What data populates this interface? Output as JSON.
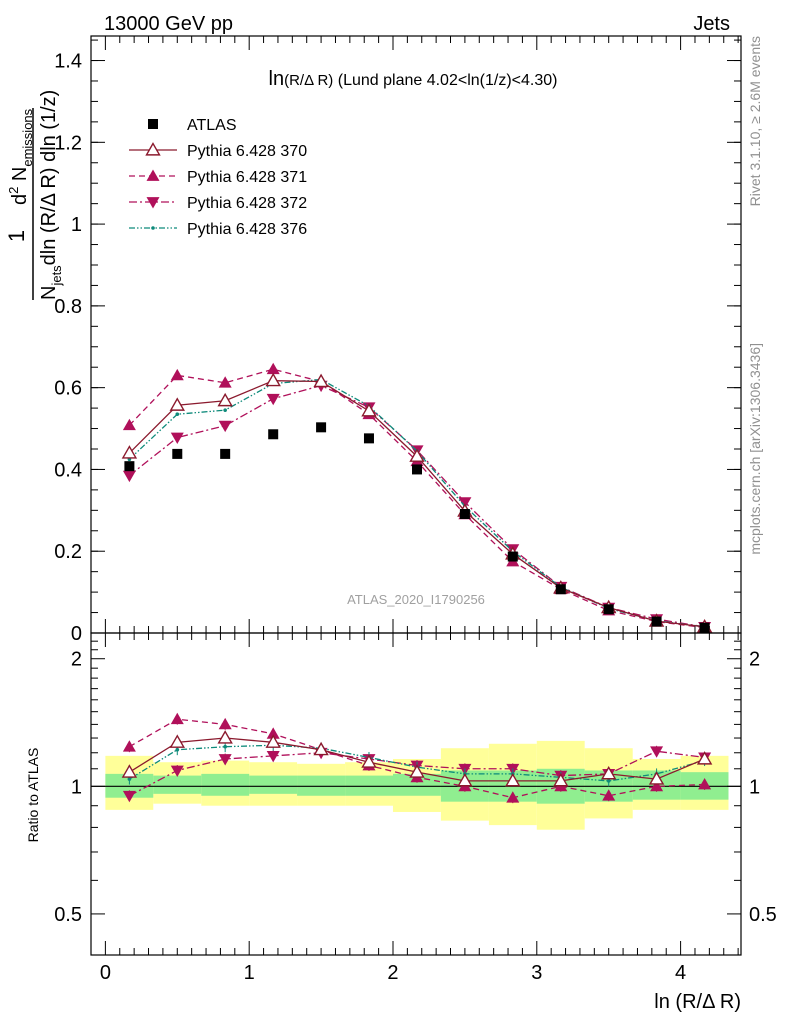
{
  "header": {
    "left": "13000 GeV pp",
    "right": "Jets"
  },
  "side_labels": {
    "rivet": "Rivet 3.1.10, ≥ 2.6M events",
    "mcplots": "mcplots.cern.ch [arXiv:1306.3436]"
  },
  "watermark": "ATLAS_2020_I1790256",
  "chart_data": [
    {
      "type": "scatter",
      "title": "ln(R/Δ R) (Lund plane 4.02<ln(1/z)<4.30)",
      "title_parts": {
        "a": "ln",
        "b": "(R/Δ R)",
        "c": " (Lund plane 4.02<ln(1/z)<4.30)"
      },
      "ylabel": {
        "one": "1",
        "n": "N",
        "n_sub": "jets",
        "dln": "dln (R/Δ R) dln (1/z)",
        "d2": "d",
        "d2_sup": "2",
        "nem": " N",
        "nem_sub": "emissions"
      },
      "xlim": [
        -0.1,
        4.42
      ],
      "ylim": [
        0,
        1.46
      ],
      "yticks": [
        0,
        0.2,
        0.4,
        0.6,
        0.8,
        1,
        1.2,
        1.4
      ],
      "ytick_labels": [
        "0",
        "0.2",
        "0.4",
        "0.6",
        "0.8",
        "1",
        "1.2",
        "1.4"
      ],
      "x": [
        0.167,
        0.5,
        0.833,
        1.167,
        1.5,
        1.833,
        2.167,
        2.5,
        2.833,
        3.167,
        3.5,
        3.833,
        4.167
      ],
      "series": [
        {
          "name": "ATLAS",
          "color": "#000000",
          "marker": "square",
          "line": "none",
          "values": [
            0.408,
            0.438,
            0.438,
            0.486,
            0.503,
            0.476,
            0.4,
            0.291,
            0.187,
            0.107,
            0.058,
            0.028,
            0.013
          ]
        },
        {
          "name": "Pythia 6.428 370",
          "color": "#8b1a2e",
          "marker": "triangle-open",
          "line": "solid",
          "values": [
            0.44,
            0.557,
            0.568,
            0.617,
            0.615,
            0.543,
            0.432,
            0.298,
            0.193,
            0.11,
            0.062,
            0.029,
            0.015
          ]
        },
        {
          "name": "Pythia 6.428 371",
          "color": "#b0105a",
          "marker": "triangle-up",
          "line": "dashed",
          "values": [
            0.508,
            0.63,
            0.612,
            0.645,
            0.615,
            0.535,
            0.42,
            0.29,
            0.175,
            0.107,
            0.055,
            0.028,
            0.013
          ]
        },
        {
          "name": "Pythia 6.428 372",
          "color": "#b0105a",
          "marker": "triangle-down",
          "line": "dashdot",
          "values": [
            0.385,
            0.478,
            0.507,
            0.573,
            0.605,
            0.552,
            0.447,
            0.32,
            0.205,
            0.113,
            0.062,
            0.034,
            0.015
          ]
        },
        {
          "name": "Pythia 6.428 376",
          "color": "#0d8a7a",
          "marker": "dot",
          "line": "dashdotdot",
          "values": [
            0.425,
            0.535,
            0.545,
            0.61,
            0.62,
            0.555,
            0.445,
            0.31,
            0.2,
            0.112,
            0.06,
            0.03,
            0.015
          ]
        }
      ]
    },
    {
      "type": "scatter",
      "ylabel": "Ratio to ATLAS",
      "xlabel": "ln (R/Δ R)",
      "xlim": [
        -0.1,
        4.42
      ],
      "ylim": [
        0.4,
        2.3
      ],
      "log_y": true,
      "yticks": [
        0.5,
        1,
        2
      ],
      "ytick_labels": [
        "0.5",
        "1",
        "2"
      ],
      "xticks": [
        0,
        1,
        2,
        3,
        4
      ],
      "xtick_labels": [
        "0",
        "1",
        "2",
        "3",
        "4"
      ],
      "x": [
        0.167,
        0.5,
        0.833,
        1.167,
        1.5,
        1.833,
        2.167,
        2.5,
        2.833,
        3.167,
        3.5,
        3.833,
        4.167
      ],
      "bands": {
        "edges": [
          0,
          0.333,
          0.667,
          1.0,
          1.333,
          1.667,
          2.0,
          2.333,
          2.667,
          3.0,
          3.333,
          3.667,
          4.0,
          4.333
        ],
        "stat_low": [
          0.94,
          0.96,
          0.95,
          0.96,
          0.95,
          0.95,
          0.95,
          0.92,
          0.92,
          0.91,
          0.92,
          0.93,
          0.93
        ],
        "stat_high": [
          1.07,
          1.06,
          1.07,
          1.06,
          1.06,
          1.06,
          1.07,
          1.09,
          1.09,
          1.1,
          1.09,
          1.09,
          1.08
        ],
        "total_low": [
          0.88,
          0.91,
          0.9,
          0.9,
          0.9,
          0.9,
          0.87,
          0.83,
          0.81,
          0.79,
          0.84,
          0.88,
          0.88
        ],
        "total_high": [
          1.18,
          1.14,
          1.15,
          1.14,
          1.13,
          1.14,
          1.16,
          1.23,
          1.26,
          1.28,
          1.23,
          1.16,
          1.18
        ]
      },
      "series": [
        {
          "name": "Pythia 6.428 370",
          "values": [
            1.08,
            1.27,
            1.3,
            1.27,
            1.22,
            1.14,
            1.08,
            1.03,
            1.03,
            1.03,
            1.07,
            1.04,
            1.16
          ]
        },
        {
          "name": "Pythia 6.428 371",
          "values": [
            1.24,
            1.44,
            1.4,
            1.33,
            1.22,
            1.12,
            1.05,
            1.0,
            0.94,
            1.0,
            0.95,
            1.0,
            1.01
          ]
        },
        {
          "name": "Pythia 6.428 372",
          "values": [
            0.95,
            1.09,
            1.16,
            1.18,
            1.2,
            1.16,
            1.12,
            1.1,
            1.1,
            1.06,
            1.07,
            1.21,
            1.17
          ]
        },
        {
          "name": "Pythia 6.428 376",
          "values": [
            1.04,
            1.22,
            1.24,
            1.25,
            1.23,
            1.17,
            1.11,
            1.07,
            1.07,
            1.05,
            1.03,
            1.07,
            1.15
          ]
        }
      ]
    }
  ]
}
